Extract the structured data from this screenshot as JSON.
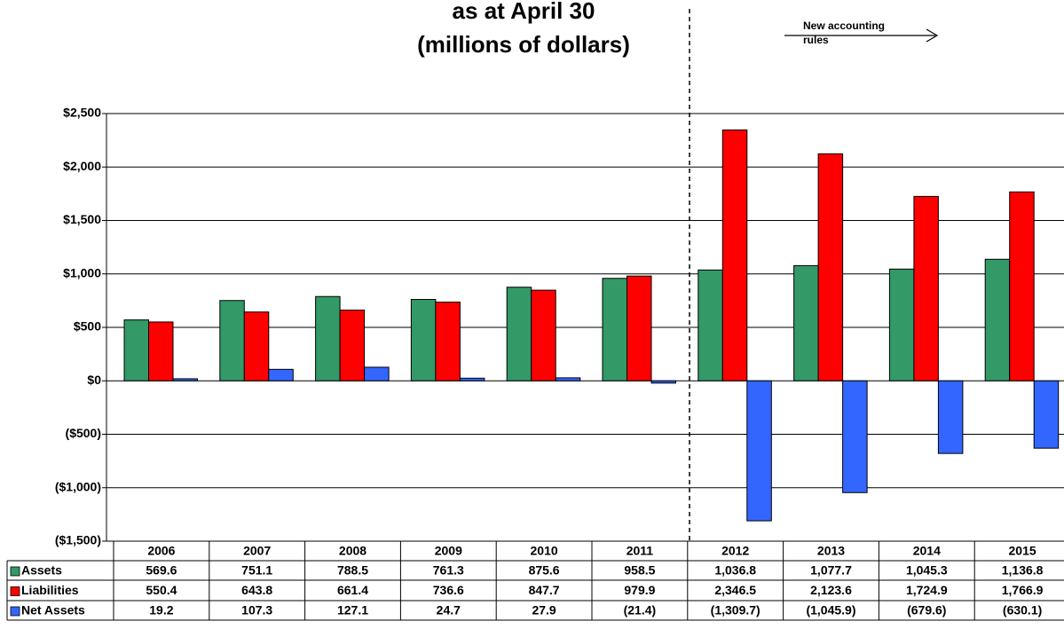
{
  "chart_data": {
    "type": "bar",
    "title_lines": [
      "as at April 30",
      "(millions of dollars)"
    ],
    "annotation_lines": [
      "New accounting",
      "rules"
    ],
    "categories": [
      "2006",
      "2007",
      "2008",
      "2009",
      "2010",
      "2011",
      "2012",
      "2013",
      "2014",
      "2015"
    ],
    "series": [
      {
        "name": "Assets",
        "color": "#339966",
        "values": [
          569.6,
          751.1,
          788.5,
          761.3,
          875.6,
          958.5,
          1036.8,
          1077.7,
          1045.3,
          1136.8
        ],
        "value_labels": [
          "569.6",
          "751.1",
          "788.5",
          "761.3",
          "875.6",
          "958.5",
          "1,036.8",
          "1,077.7",
          "1,045.3",
          "1,136.8"
        ]
      },
      {
        "name": "Liabilities",
        "color": "#ff0000",
        "values": [
          550.4,
          643.8,
          661.4,
          736.6,
          847.7,
          979.9,
          2346.5,
          2123.6,
          1724.9,
          1766.9
        ],
        "value_labels": [
          "550.4",
          "643.8",
          "661.4",
          "736.6",
          "847.7",
          "979.9",
          "2,346.5",
          "2,123.6",
          "1,724.9",
          "1,766.9"
        ]
      },
      {
        "name": "Net Assets",
        "color": "#3366ff",
        "values": [
          19.2,
          107.3,
          127.1,
          24.7,
          27.9,
          -21.4,
          -1309.7,
          -1045.9,
          -679.6,
          -630.1
        ],
        "value_labels": [
          "19.2",
          "107.3",
          "127.1",
          "24.7",
          "27.9",
          "(21.4)",
          "(1,309.7)",
          "(1,045.9)",
          "(679.6)",
          "(630.1)"
        ]
      }
    ],
    "ylim": [
      -1500,
      2500
    ],
    "yticks": [
      {
        "value": -1500,
        "label": "($1,500)"
      },
      {
        "value": -1000,
        "label": "($1,000)"
      },
      {
        "value": -500,
        "label": "($500)"
      },
      {
        "value": 0,
        "label": "$0"
      },
      {
        "value": 500,
        "label": "$500"
      },
      {
        "value": 1000,
        "label": "$1,000"
      },
      {
        "value": 1500,
        "label": "$1,500"
      },
      {
        "value": 2000,
        "label": "$2,000"
      },
      {
        "value": 2500,
        "label": "$2,500"
      }
    ],
    "grid": true
  }
}
